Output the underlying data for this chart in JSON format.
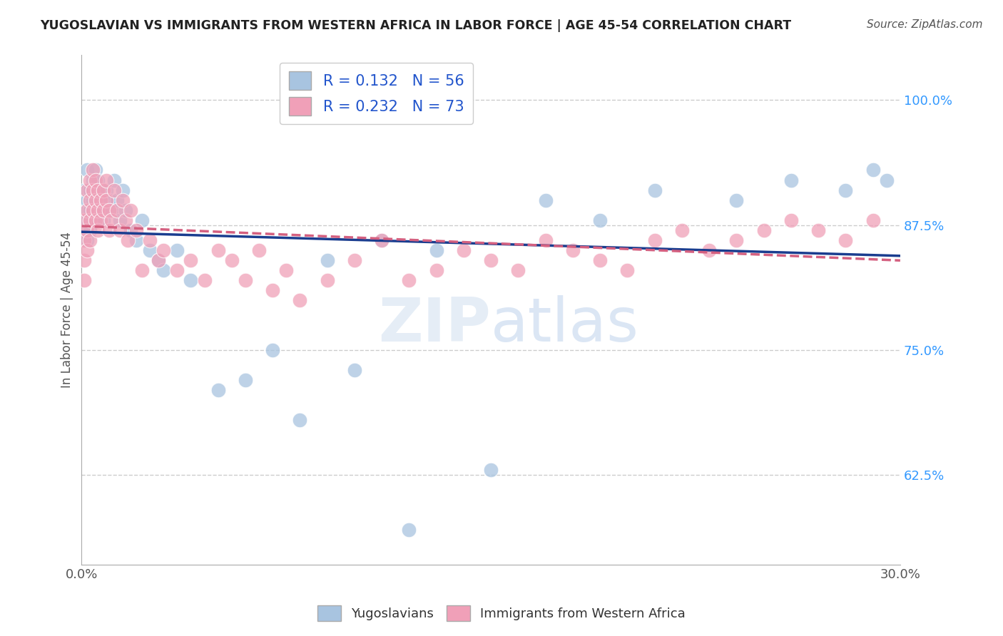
{
  "title": "YUGOSLAVIAN VS IMMIGRANTS FROM WESTERN AFRICA IN LABOR FORCE | AGE 45-54 CORRELATION CHART",
  "source": "Source: ZipAtlas.com",
  "ylabel": "In Labor Force | Age 45-54",
  "xlim": [
    0.0,
    0.3
  ],
  "ylim": [
    0.535,
    1.045
  ],
  "yticks": [
    0.625,
    0.75,
    0.875,
    1.0
  ],
  "ytick_labels": [
    "62.5%",
    "75.0%",
    "87.5%",
    "100.0%"
  ],
  "xticks": [
    0.0,
    0.3
  ],
  "xtick_labels": [
    "0.0%",
    "30.0%"
  ],
  "legend_labels": [
    "Yugoslavians",
    "Immigrants from Western Africa"
  ],
  "blue_R": 0.132,
  "blue_N": 56,
  "pink_R": 0.232,
  "pink_N": 73,
  "blue_color": "#a8c4e0",
  "pink_color": "#f0a0b8",
  "blue_line_color": "#1a3d8f",
  "pink_line_color": "#d46080",
  "grid_color": "#cccccc",
  "blue_seed": 7,
  "pink_seed": 21,
  "blue_x": [
    0.001,
    0.001,
    0.001,
    0.002,
    0.002,
    0.002,
    0.002,
    0.003,
    0.003,
    0.003,
    0.004,
    0.004,
    0.004,
    0.005,
    0.005,
    0.005,
    0.006,
    0.006,
    0.007,
    0.007,
    0.008,
    0.008,
    0.009,
    0.01,
    0.011,
    0.012,
    0.013,
    0.014,
    0.015,
    0.016,
    0.018,
    0.02,
    0.022,
    0.025,
    0.028,
    0.03,
    0.035,
    0.04,
    0.05,
    0.06,
    0.07,
    0.08,
    0.09,
    0.1,
    0.11,
    0.12,
    0.13,
    0.15,
    0.17,
    0.19,
    0.21,
    0.24,
    0.26,
    0.28,
    0.29,
    0.295
  ],
  "blue_y": [
    0.91,
    0.89,
    0.87,
    0.93,
    0.9,
    0.88,
    0.86,
    0.91,
    0.89,
    0.87,
    0.92,
    0.9,
    0.88,
    0.93,
    0.91,
    0.89,
    0.92,
    0.9,
    0.91,
    0.89,
    0.9,
    0.88,
    0.91,
    0.9,
    0.89,
    0.92,
    0.9,
    0.88,
    0.91,
    0.89,
    0.87,
    0.86,
    0.88,
    0.85,
    0.84,
    0.83,
    0.85,
    0.82,
    0.71,
    0.72,
    0.75,
    0.68,
    0.84,
    0.73,
    0.86,
    0.57,
    0.85,
    0.63,
    0.9,
    0.88,
    0.91,
    0.9,
    0.92,
    0.91,
    0.93,
    0.92
  ],
  "pink_x": [
    0.001,
    0.001,
    0.001,
    0.001,
    0.002,
    0.002,
    0.002,
    0.002,
    0.003,
    0.003,
    0.003,
    0.003,
    0.004,
    0.004,
    0.004,
    0.005,
    0.005,
    0.005,
    0.006,
    0.006,
    0.006,
    0.007,
    0.007,
    0.008,
    0.008,
    0.009,
    0.009,
    0.01,
    0.01,
    0.011,
    0.012,
    0.013,
    0.014,
    0.015,
    0.016,
    0.017,
    0.018,
    0.02,
    0.022,
    0.025,
    0.028,
    0.03,
    0.035,
    0.04,
    0.045,
    0.05,
    0.055,
    0.06,
    0.065,
    0.07,
    0.075,
    0.08,
    0.09,
    0.1,
    0.11,
    0.12,
    0.13,
    0.14,
    0.15,
    0.16,
    0.17,
    0.18,
    0.19,
    0.2,
    0.21,
    0.22,
    0.23,
    0.24,
    0.25,
    0.26,
    0.27,
    0.28,
    0.29
  ],
  "pink_y": [
    0.88,
    0.86,
    0.84,
    0.82,
    0.91,
    0.89,
    0.87,
    0.85,
    0.92,
    0.9,
    0.88,
    0.86,
    0.93,
    0.91,
    0.89,
    0.92,
    0.9,
    0.88,
    0.91,
    0.89,
    0.87,
    0.9,
    0.88,
    0.91,
    0.89,
    0.92,
    0.9,
    0.89,
    0.87,
    0.88,
    0.91,
    0.89,
    0.87,
    0.9,
    0.88,
    0.86,
    0.89,
    0.87,
    0.83,
    0.86,
    0.84,
    0.85,
    0.83,
    0.84,
    0.82,
    0.85,
    0.84,
    0.82,
    0.85,
    0.81,
    0.83,
    0.8,
    0.82,
    0.84,
    0.86,
    0.82,
    0.83,
    0.85,
    0.84,
    0.83,
    0.86,
    0.85,
    0.84,
    0.83,
    0.86,
    0.87,
    0.85,
    0.86,
    0.87,
    0.88,
    0.87,
    0.86,
    0.88
  ]
}
